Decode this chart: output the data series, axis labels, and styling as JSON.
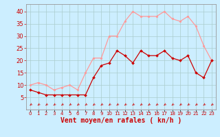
{
  "hours": [
    0,
    1,
    2,
    3,
    4,
    5,
    6,
    7,
    8,
    9,
    10,
    11,
    12,
    13,
    14,
    15,
    16,
    17,
    18,
    19,
    20,
    21,
    22,
    23
  ],
  "wind_avg": [
    8,
    7,
    6,
    6,
    6,
    6,
    6,
    6,
    13,
    18,
    19,
    24,
    22,
    19,
    24,
    22,
    22,
    24,
    21,
    20,
    22,
    15,
    13,
    20
  ],
  "wind_gust": [
    10,
    11,
    10,
    8,
    9,
    10,
    8,
    15,
    21,
    21,
    30,
    30,
    36,
    40,
    38,
    38,
    38,
    40,
    37,
    36,
    38,
    34,
    26,
    20
  ],
  "bg_color": "#cceeff",
  "grid_color": "#aacccc",
  "line_avg_color": "#cc0000",
  "line_gust_color": "#ff9999",
  "arrow_color": "#cc0000",
  "xlabel": "Vent moyen/en rafales ( kn/h )",
  "yticks": [
    5,
    10,
    15,
    20,
    25,
    30,
    35,
    40
  ],
  "ylim": [
    0,
    43
  ],
  "xlim": [
    -0.5,
    23.5
  ],
  "axis_fontsize": 6,
  "label_fontsize": 7
}
